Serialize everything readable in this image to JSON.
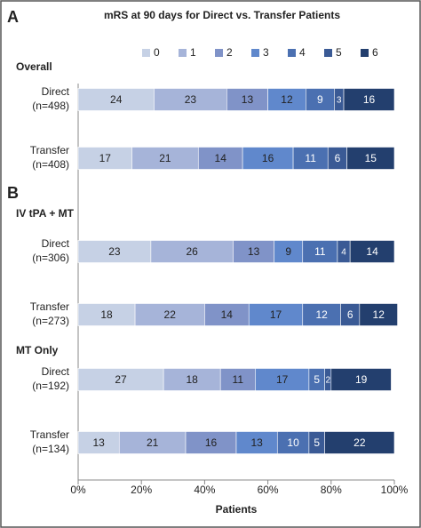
{
  "chart_data": {
    "type": "stacked-barh",
    "title": "mRS at 90 days for Direct  vs. Transfer Patients",
    "xlabel": "Patients",
    "annotations": [
      "A",
      "Overall",
      "B",
      "IV tPA + MT",
      "MT Only"
    ],
    "categories": [
      [
        "Direct",
        "(n=498)"
      ],
      [
        "Transfer",
        "(n=408)"
      ],
      [
        "Direct",
        "(n=306)"
      ],
      [
        "Transfer",
        "(n=273)"
      ],
      [
        "Direct",
        "(n=192)"
      ],
      [
        "Transfer",
        "(n=134)"
      ]
    ],
    "series": [
      {
        "name": "0",
        "color": "#c6d1e5",
        "values": [
          24,
          17,
          23,
          18,
          27,
          13
        ]
      },
      {
        "name": "1",
        "color": "#a6b4d9",
        "values": [
          23,
          21,
          26,
          22,
          18,
          21
        ]
      },
      {
        "name": "2",
        "color": "#8093c8",
        "values": [
          13,
          14,
          13,
          14,
          11,
          16
        ]
      },
      {
        "name": "3",
        "color": "#6088cc",
        "values": [
          12,
          16,
          9,
          17,
          17,
          13
        ]
      },
      {
        "name": "4",
        "color": "#4b70b1",
        "values": [
          9,
          11,
          11,
          12,
          5,
          10
        ]
      },
      {
        "name": "5",
        "color": "#3a5a95",
        "values": [
          3,
          6,
          4,
          6,
          2,
          5
        ]
      },
      {
        "name": "6",
        "color": "#233f6e",
        "values": [
          16,
          15,
          14,
          12,
          19,
          22
        ]
      }
    ],
    "xlim": [
      0,
      100
    ],
    "xticks": [
      {
        "value": 0,
        "label": "0%"
      },
      {
        "value": 20,
        "label": "20%"
      },
      {
        "value": 40,
        "label": "40%"
      },
      {
        "value": 60,
        "label": "60%"
      },
      {
        "value": 80,
        "label": "80%"
      },
      {
        "value": 100,
        "label": "100%"
      }
    ],
    "legend": "top"
  }
}
